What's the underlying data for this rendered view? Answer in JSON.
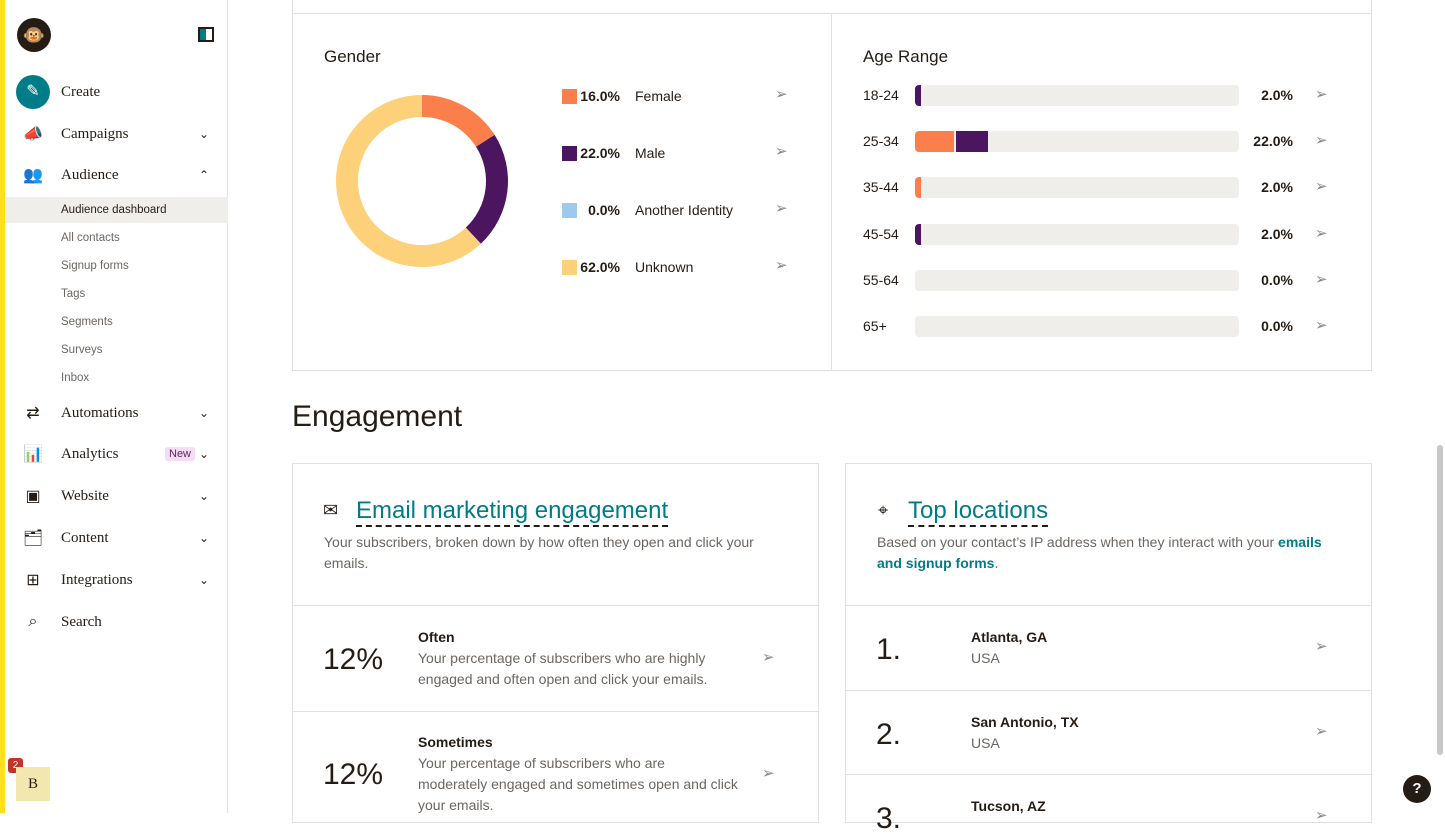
{
  "sidebar": {
    "create": "Create",
    "items": [
      {
        "label": "Campaigns",
        "icon": "megaphone-icon"
      },
      {
        "label": "Audience",
        "icon": "audience-icon"
      },
      {
        "label": "Automations",
        "icon": "automations-icon"
      },
      {
        "label": "Analytics",
        "icon": "bar-chart-icon",
        "badge": "New"
      },
      {
        "label": "Website",
        "icon": "website-icon"
      },
      {
        "label": "Content",
        "icon": "content-icon"
      },
      {
        "label": "Integrations",
        "icon": "grid-icon"
      },
      {
        "label": "Search",
        "icon": "search-icon"
      }
    ],
    "audience_sub": [
      "Audience dashboard",
      "All contacts",
      "Signup forms",
      "Tags",
      "Segments",
      "Surveys",
      "Inbox"
    ],
    "avatar": "B",
    "notifications": "2"
  },
  "gender": {
    "title": "Gender",
    "items": [
      {
        "pct": "16.0%",
        "label": "Female",
        "value": 16,
        "color": "#fb7f4b"
      },
      {
        "pct": "22.0%",
        "label": "Male",
        "value": 22,
        "color": "#4c1560"
      },
      {
        "pct": "0.0%",
        "label": "Another Identity",
        "value": 0,
        "color": "#9cc9ed"
      },
      {
        "pct": "62.0%",
        "label": "Unknown",
        "value": 62,
        "color": "#fdd07a"
      }
    ]
  },
  "age": {
    "title": "Age Range",
    "rows": [
      {
        "label": "18-24",
        "pct": "2.0%",
        "female": 0,
        "male": 2
      },
      {
        "label": "25-34",
        "pct": "22.0%",
        "female": 12,
        "male": 10
      },
      {
        "label": "35-44",
        "pct": "2.0%",
        "female": 2,
        "male": 0
      },
      {
        "label": "45-54",
        "pct": "2.0%",
        "female": 0,
        "male": 2
      },
      {
        "label": "55-64",
        "pct": "0.0%",
        "female": 0,
        "male": 0
      },
      {
        "label": "65+",
        "pct": "0.0%",
        "female": 0,
        "male": 0
      }
    ]
  },
  "engagement": {
    "title": "Engagement",
    "email": {
      "title": "Email marketing engagement",
      "desc": "Your subscribers, broken down by how often they open and click your emails.",
      "rows": [
        {
          "pct": "12%",
          "title": "Often",
          "desc": "Your percentage of subscribers who are highly engaged and often open and click your emails."
        },
        {
          "pct": "12%",
          "title": "Sometimes",
          "desc": "Your percentage of subscribers who are moderately engaged and sometimes open and click your emails."
        }
      ]
    },
    "locations": {
      "title": "Top locations",
      "desc": "Based on your contact’s IP address when they interact with your",
      "link": "emails and signup forms",
      "link_suffix": ".",
      "rows": [
        {
          "rank": "1.",
          "city": "Atlanta, GA",
          "country": "USA"
        },
        {
          "rank": "2.",
          "city": "San Antonio, TX",
          "country": "USA"
        },
        {
          "rank": "3.",
          "city": "Tucson, AZ",
          "country": ""
        }
      ]
    }
  },
  "help": "?"
}
